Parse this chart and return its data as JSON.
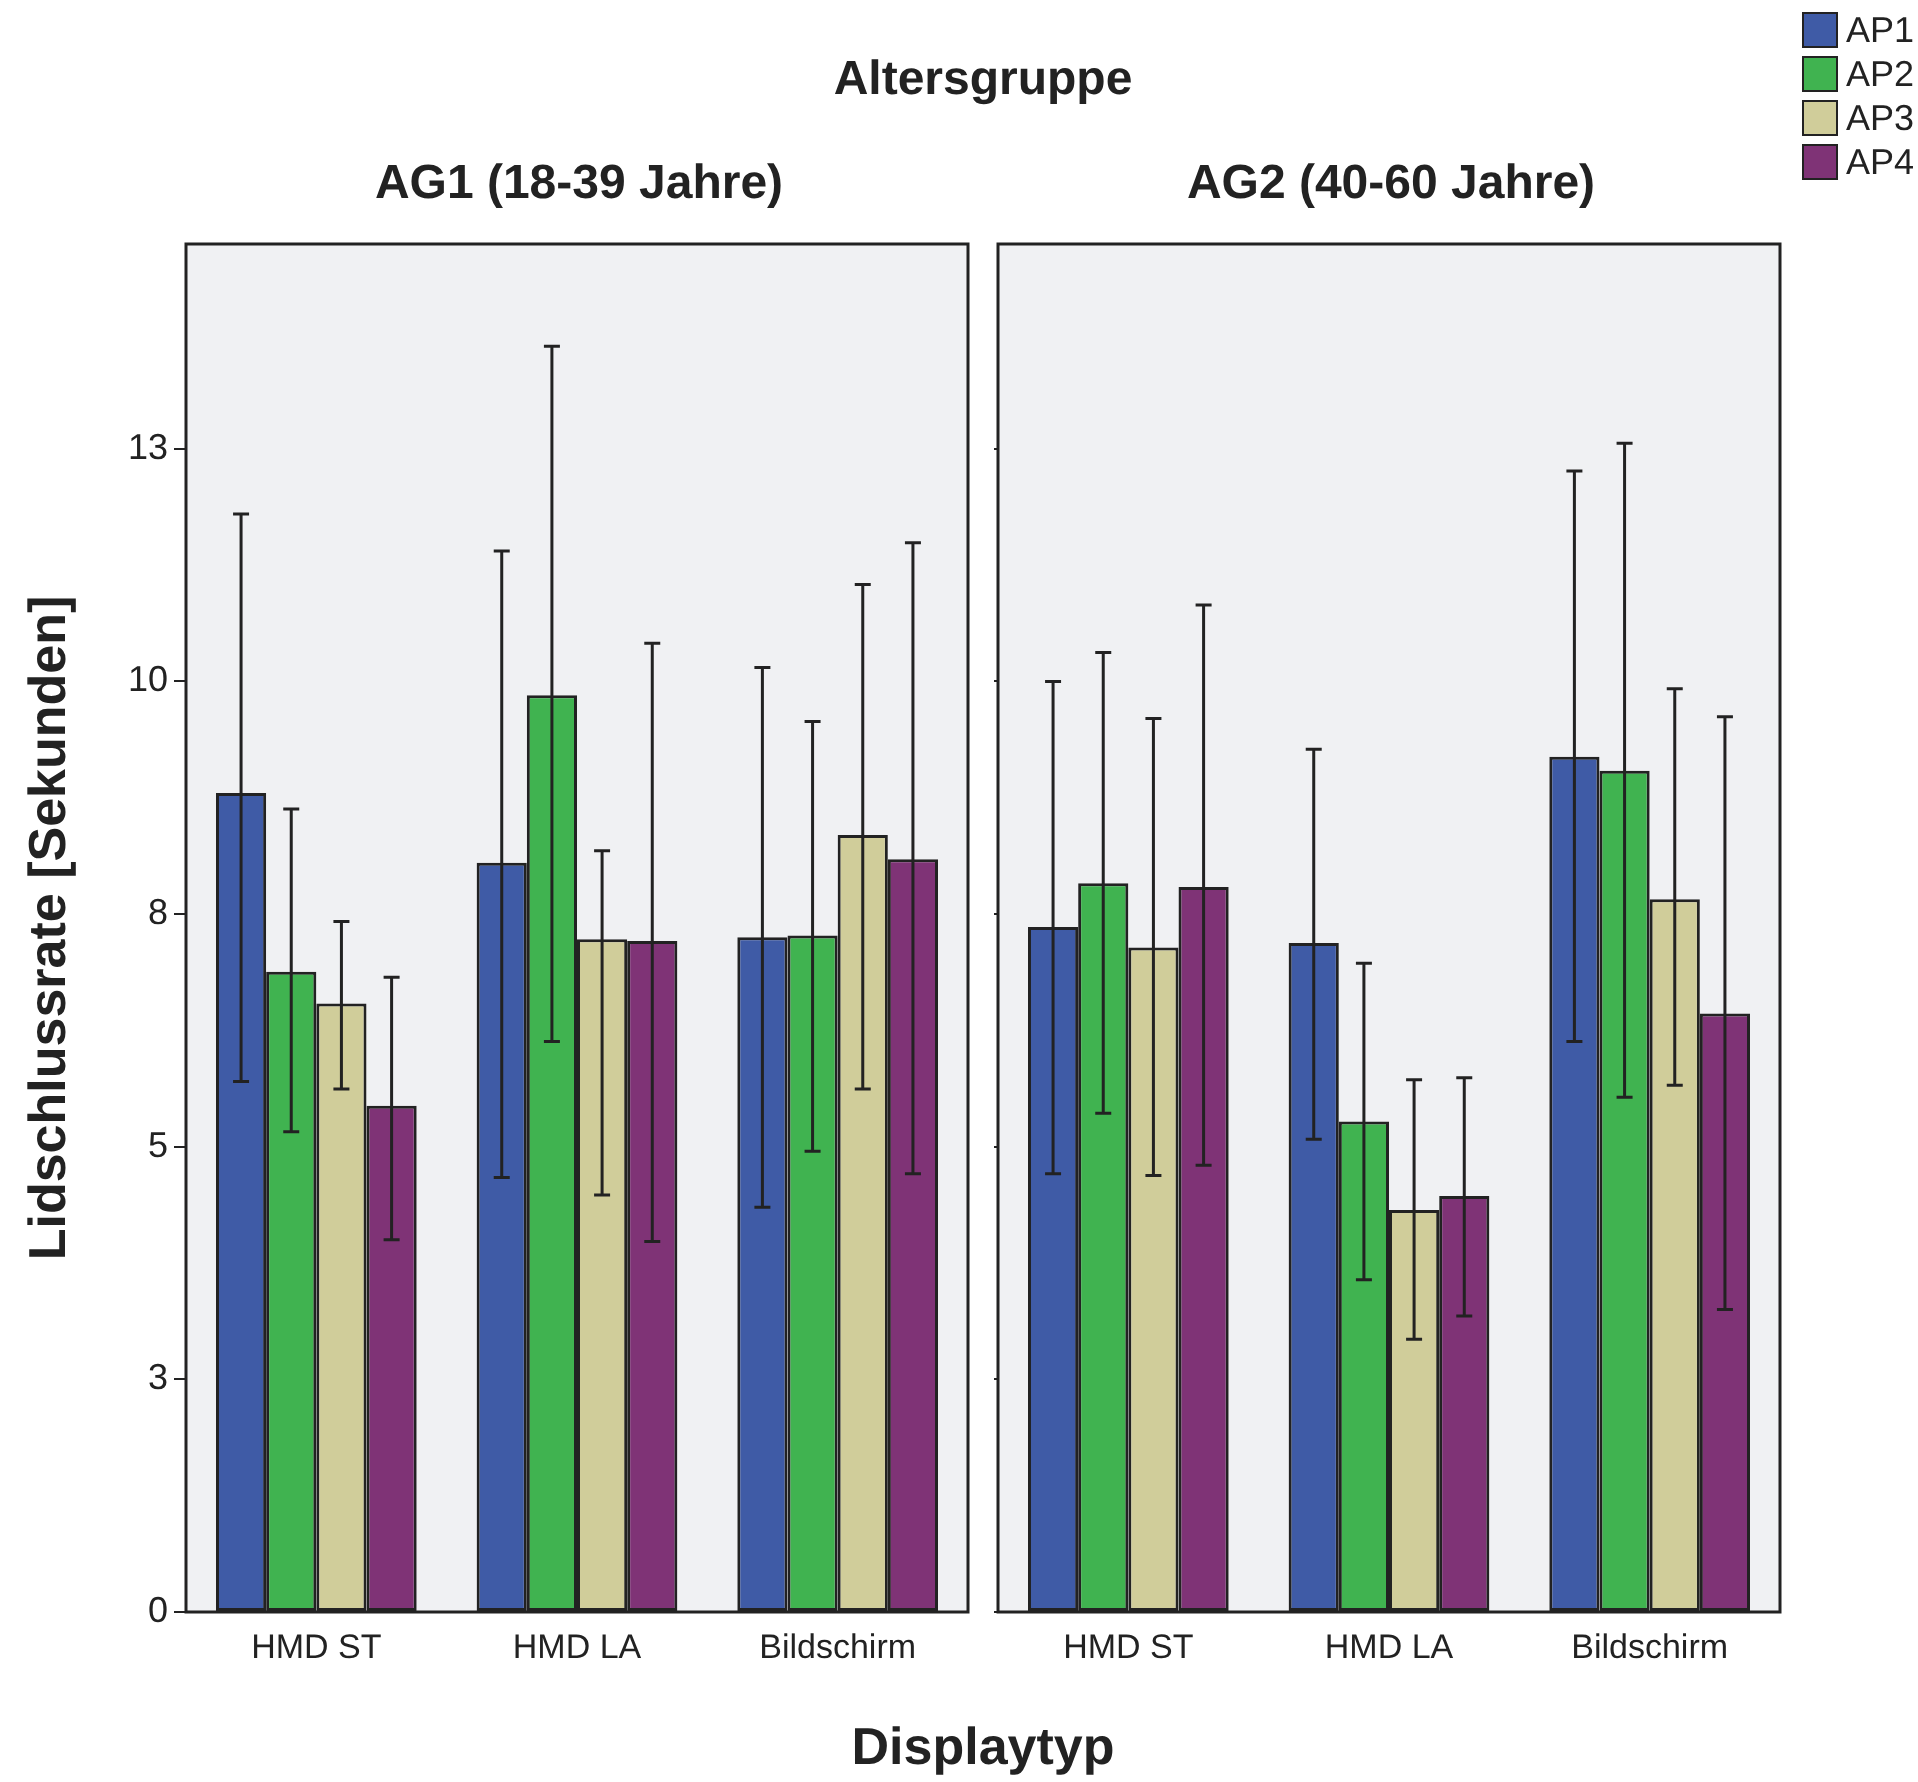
{
  "chart_data": [
    {
      "type": "bar",
      "title": "AG1 (18-39 Jahre)",
      "xlabel": "Displaytyp",
      "ylabel": "Lidschlussrate [Sekunden]",
      "annotations": [
        "Altersgruppe"
      ],
      "categories": [
        "HMD ST",
        "HMD LA",
        "Bildschirm"
      ],
      "series": [
        {
          "name": "AP1",
          "color": "#3f5ba6",
          "values": [
            8.8,
            8.05,
            7.25
          ],
          "errors": [
            [
              5.7,
              11.8
            ],
            [
              4.67,
              11.4
            ],
            [
              4.35,
              10.15
            ]
          ]
        },
        {
          "name": "AP2",
          "color": "#40b350",
          "values": [
            6.88,
            9.85,
            7.27
          ],
          "errors": [
            [
              5.16,
              8.63
            ],
            [
              6.13,
              13.6
            ],
            [
              4.95,
              9.57
            ]
          ]
        },
        {
          "name": "AP3",
          "color": "#d0cd9a",
          "values": [
            6.54,
            7.23,
            8.35
          ],
          "errors": [
            [
              5.62,
              7.42
            ],
            [
              4.48,
              8.18
            ],
            [
              5.62,
              11.04
            ]
          ]
        },
        {
          "name": "AP4",
          "color": "#7f3376",
          "values": [
            5.44,
            7.21,
            8.09
          ],
          "errors": [
            [
              4.0,
              6.82
            ],
            [
              3.98,
              10.41
            ],
            [
              4.71,
              11.49
            ]
          ]
        }
      ],
      "ylim": [
        0,
        14.7
      ],
      "yticks": [
        0,
        {
          "value": 2.5,
          "label": "3"
        },
        5,
        {
          "value": 7.5,
          "label": "8"
        },
        10,
        {
          "value": 12.5,
          "label": "13"
        }
      ],
      "grid": false,
      "legend": "top right"
    },
    {
      "type": "bar",
      "title": "AG2 (40-60 Jahre)",
      "categories": [
        "HMD ST",
        "HMD LA",
        "Bildschirm"
      ],
      "series": [
        {
          "color": "#3f5ba6",
          "values": [
            7.36,
            7.19,
            9.19
          ],
          "errors": [
            [
              4.71,
              10.0
            ],
            [
              5.08,
              9.27
            ],
            [
              6.13,
              12.26
            ]
          ]
        },
        {
          "color": "#40b350",
          "values": [
            7.83,
            5.27,
            9.04
          ],
          "errors": [
            [
              5.36,
              10.31
            ],
            [
              3.57,
              6.97
            ],
            [
              5.53,
              12.56
            ]
          ]
        },
        {
          "color": "#d0cd9a",
          "values": [
            7.14,
            4.32,
            7.66
          ],
          "errors": [
            [
              4.69,
              9.6
            ],
            [
              2.93,
              5.72
            ],
            [
              5.66,
              9.92
            ]
          ]
        },
        {
          "color": "#7f3376",
          "values": [
            7.79,
            4.47,
            6.43
          ],
          "errors": [
            [
              4.8,
              10.82
            ],
            [
              3.18,
              5.74
            ],
            [
              3.25,
              9.62
            ]
          ]
        }
      ],
      "ylim": [
        0,
        14.7
      ],
      "yticks": [
        0,
        2.5,
        5,
        7.5,
        10,
        12.5
      ],
      "grid": false,
      "tick_labels": "x"
    }
  ]
}
